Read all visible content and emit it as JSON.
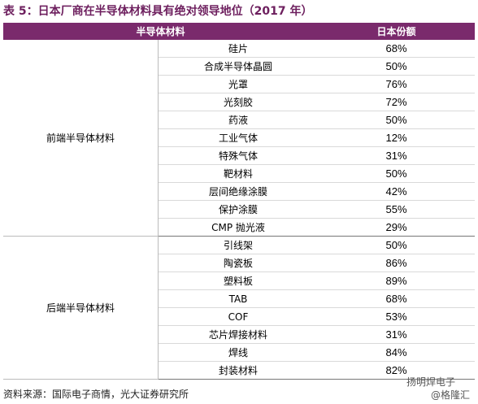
{
  "title": "表 5：日本厂商在半导体材料具有绝对领导地位（2017 年）",
  "table": {
    "header": [
      "半导体材料",
      "日本份额"
    ],
    "groups": [
      {
        "name": "前端半导体材料",
        "rows": [
          [
            "硅片",
            "68%"
          ],
          [
            "合成半导体晶圆",
            "50%"
          ],
          [
            "光罩",
            "76%"
          ],
          [
            "光刻胶",
            "72%"
          ],
          [
            "药液",
            "50%"
          ],
          [
            "工业气体",
            "12%"
          ],
          [
            "特殊气体",
            "31%"
          ],
          [
            "靶材料",
            "50%"
          ],
          [
            "层间绝缘涂膜",
            "42%"
          ],
          [
            "保护涂膜",
            "55%"
          ],
          [
            "CMP 抛光液",
            "29%"
          ]
        ]
      },
      {
        "name": "后端半导体材料",
        "rows": [
          [
            "引线架",
            "50%"
          ],
          [
            "陶瓷板",
            "86%"
          ],
          [
            "塑料板",
            "89%"
          ],
          [
            "TAB",
            "68%"
          ],
          [
            "COF",
            "53%"
          ],
          [
            "芯片焊接材料",
            "31%"
          ],
          [
            "焊线",
            "84%"
          ],
          [
            "封装材料",
            "82%"
          ]
        ]
      }
    ]
  },
  "source": "资料来源：国际电子商情，光大证券研究所",
  "watermark": [
    "扬明焊电子",
    "@格隆汇"
  ]
}
